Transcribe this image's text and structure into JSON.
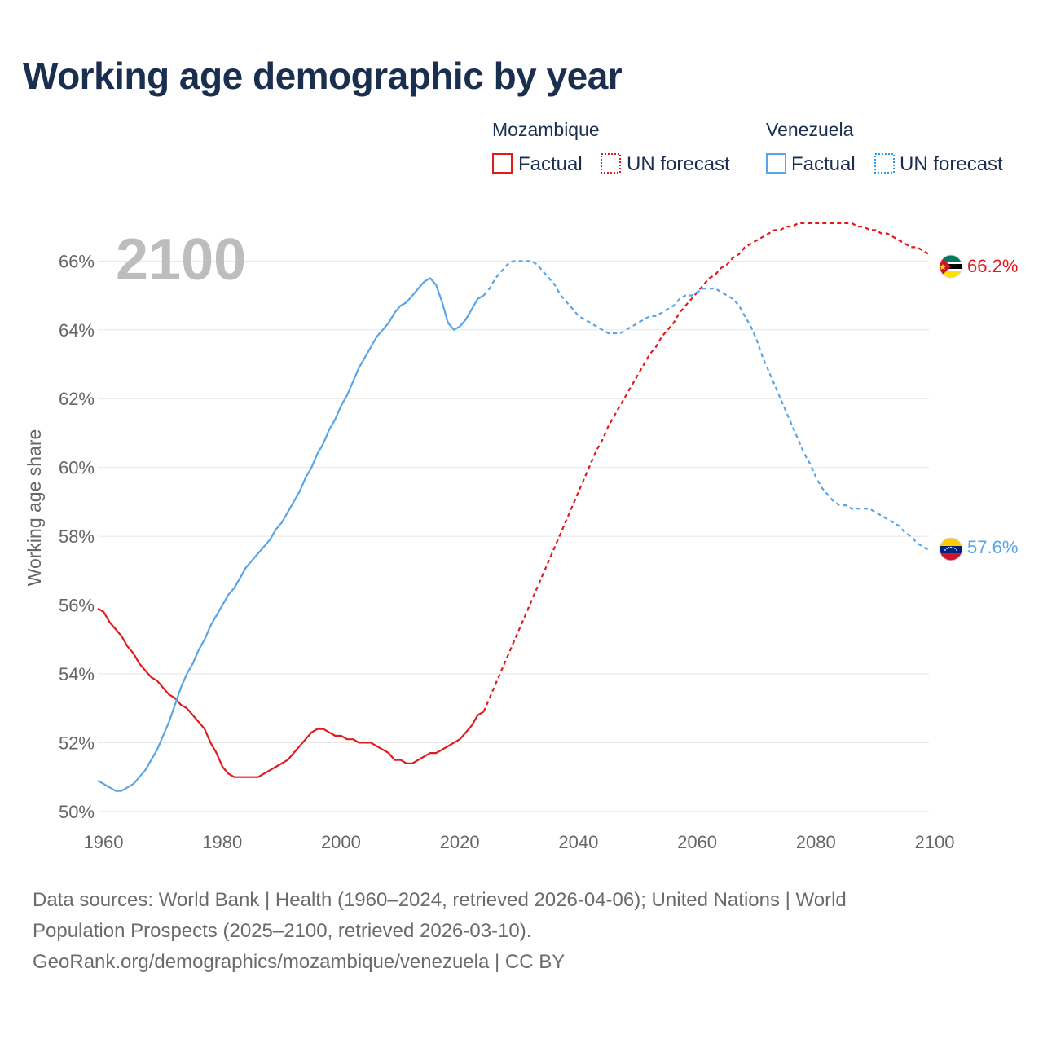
{
  "title": "Working age demographic by year",
  "footer": {
    "line1": "Data sources: World Bank | Health (1960–2024, retrieved 2026-04-06); United Nations | World",
    "line2": "Population Prospects (2025–2100, retrieved 2026-03-10).",
    "line3": "GeoRank.org/demographics/mozambique/venezuela | CC BY"
  },
  "colors": {
    "mozambique": "#e31a1c",
    "venezuela": "#5aa5e6",
    "forecast_box_vz": "#2a9df4"
  },
  "chart_data": {
    "type": "line",
    "title": "Working age demographic by year",
    "xlabel": "",
    "ylabel": "Working age share",
    "xlim": [
      1960,
      2100
    ],
    "ylim": [
      49.5,
      67.5
    ],
    "xticks": [
      1960,
      1980,
      2000,
      2020,
      2040,
      2060,
      2080,
      2100
    ],
    "yticks": [
      50,
      52,
      54,
      56,
      58,
      60,
      62,
      64,
      66
    ],
    "ytick_suffix": "%",
    "year_label": "2100",
    "forecast_start": 2024,
    "legend": {
      "groups": [
        {
          "country": "Mozambique",
          "factual": "Factual",
          "forecast": "UN forecast"
        },
        {
          "country": "Venezuela",
          "factual": "Factual",
          "forecast": "UN forecast"
        }
      ]
    },
    "series": [
      {
        "name": "Mozambique",
        "end_label": "66.2%",
        "flag": "mozambique-flag",
        "points": [
          [
            1960,
            55.9
          ],
          [
            1961,
            55.8
          ],
          [
            1962,
            55.5
          ],
          [
            1963,
            55.3
          ],
          [
            1964,
            55.1
          ],
          [
            1965,
            54.8
          ],
          [
            1966,
            54.6
          ],
          [
            1967,
            54.3
          ],
          [
            1968,
            54.1
          ],
          [
            1969,
            53.9
          ],
          [
            1970,
            53.8
          ],
          [
            1971,
            53.6
          ],
          [
            1972,
            53.4
          ],
          [
            1973,
            53.3
          ],
          [
            1974,
            53.1
          ],
          [
            1975,
            53.0
          ],
          [
            1976,
            52.8
          ],
          [
            1977,
            52.6
          ],
          [
            1978,
            52.4
          ],
          [
            1979,
            52.0
          ],
          [
            1980,
            51.7
          ],
          [
            1981,
            51.3
          ],
          [
            1982,
            51.1
          ],
          [
            1983,
            51.0
          ],
          [
            1984,
            51.0
          ],
          [
            1985,
            51.0
          ],
          [
            1986,
            51.0
          ],
          [
            1987,
            51.0
          ],
          [
            1988,
            51.1
          ],
          [
            1989,
            51.2
          ],
          [
            1990,
            51.3
          ],
          [
            1991,
            51.4
          ],
          [
            1992,
            51.5
          ],
          [
            1993,
            51.7
          ],
          [
            1994,
            51.9
          ],
          [
            1995,
            52.1
          ],
          [
            1996,
            52.3
          ],
          [
            1997,
            52.4
          ],
          [
            1998,
            52.4
          ],
          [
            1999,
            52.3
          ],
          [
            2000,
            52.2
          ],
          [
            2001,
            52.2
          ],
          [
            2002,
            52.1
          ],
          [
            2003,
            52.1
          ],
          [
            2004,
            52.0
          ],
          [
            2005,
            52.0
          ],
          [
            2006,
            52.0
          ],
          [
            2007,
            51.9
          ],
          [
            2008,
            51.8
          ],
          [
            2009,
            51.7
          ],
          [
            2010,
            51.5
          ],
          [
            2011,
            51.5
          ],
          [
            2012,
            51.4
          ],
          [
            2013,
            51.4
          ],
          [
            2014,
            51.5
          ],
          [
            2015,
            51.6
          ],
          [
            2016,
            51.7
          ],
          [
            2017,
            51.7
          ],
          [
            2018,
            51.8
          ],
          [
            2019,
            51.9
          ],
          [
            2020,
            52.0
          ],
          [
            2021,
            52.1
          ],
          [
            2022,
            52.3
          ],
          [
            2023,
            52.5
          ],
          [
            2024,
            52.8
          ],
          [
            2025,
            52.9
          ],
          [
            2026,
            53.3
          ],
          [
            2027,
            53.7
          ],
          [
            2028,
            54.1
          ],
          [
            2029,
            54.5
          ],
          [
            2030,
            54.9
          ],
          [
            2031,
            55.3
          ],
          [
            2032,
            55.7
          ],
          [
            2033,
            56.1
          ],
          [
            2034,
            56.5
          ],
          [
            2035,
            56.9
          ],
          [
            2036,
            57.3
          ],
          [
            2037,
            57.7
          ],
          [
            2038,
            58.1
          ],
          [
            2039,
            58.5
          ],
          [
            2040,
            58.9
          ],
          [
            2041,
            59.3
          ],
          [
            2042,
            59.7
          ],
          [
            2043,
            60.1
          ],
          [
            2044,
            60.5
          ],
          [
            2045,
            60.8
          ],
          [
            2046,
            61.2
          ],
          [
            2047,
            61.5
          ],
          [
            2048,
            61.8
          ],
          [
            2049,
            62.1
          ],
          [
            2050,
            62.4
          ],
          [
            2051,
            62.7
          ],
          [
            2052,
            63.0
          ],
          [
            2053,
            63.3
          ],
          [
            2054,
            63.5
          ],
          [
            2055,
            63.8
          ],
          [
            2056,
            64.0
          ],
          [
            2057,
            64.2
          ],
          [
            2058,
            64.5
          ],
          [
            2059,
            64.7
          ],
          [
            2060,
            64.9
          ],
          [
            2061,
            65.1
          ],
          [
            2062,
            65.3
          ],
          [
            2063,
            65.5
          ],
          [
            2064,
            65.6
          ],
          [
            2065,
            65.8
          ],
          [
            2066,
            65.9
          ],
          [
            2067,
            66.1
          ],
          [
            2068,
            66.2
          ],
          [
            2069,
            66.4
          ],
          [
            2070,
            66.5
          ],
          [
            2071,
            66.6
          ],
          [
            2072,
            66.7
          ],
          [
            2073,
            66.8
          ],
          [
            2074,
            66.9
          ],
          [
            2075,
            66.9
          ],
          [
            2076,
            67.0
          ],
          [
            2077,
            67.0
          ],
          [
            2078,
            67.1
          ],
          [
            2079,
            67.1
          ],
          [
            2080,
            67.1
          ],
          [
            2081,
            67.1
          ],
          [
            2082,
            67.1
          ],
          [
            2083,
            67.1
          ],
          [
            2084,
            67.1
          ],
          [
            2085,
            67.1
          ],
          [
            2086,
            67.1
          ],
          [
            2087,
            67.1
          ],
          [
            2088,
            67.0
          ],
          [
            2089,
            67.0
          ],
          [
            2090,
            66.9
          ],
          [
            2091,
            66.9
          ],
          [
            2092,
            66.8
          ],
          [
            2093,
            66.8
          ],
          [
            2094,
            66.7
          ],
          [
            2095,
            66.6
          ],
          [
            2096,
            66.5
          ],
          [
            2097,
            66.4
          ],
          [
            2098,
            66.4
          ],
          [
            2099,
            66.3
          ],
          [
            2100,
            66.2
          ]
        ]
      },
      {
        "name": "Venezuela",
        "end_label": "57.6%",
        "flag": "venezuela-flag",
        "points": [
          [
            1960,
            50.9
          ],
          [
            1961,
            50.8
          ],
          [
            1962,
            50.7
          ],
          [
            1963,
            50.6
          ],
          [
            1964,
            50.6
          ],
          [
            1965,
            50.7
          ],
          [
            1966,
            50.8
          ],
          [
            1967,
            51.0
          ],
          [
            1968,
            51.2
          ],
          [
            1969,
            51.5
          ],
          [
            1970,
            51.8
          ],
          [
            1971,
            52.2
          ],
          [
            1972,
            52.6
          ],
          [
            1973,
            53.1
          ],
          [
            1974,
            53.6
          ],
          [
            1975,
            54.0
          ],
          [
            1976,
            54.3
          ],
          [
            1977,
            54.7
          ],
          [
            1978,
            55.0
          ],
          [
            1979,
            55.4
          ],
          [
            1980,
            55.7
          ],
          [
            1981,
            56.0
          ],
          [
            1982,
            56.3
          ],
          [
            1983,
            56.5
          ],
          [
            1984,
            56.8
          ],
          [
            1985,
            57.1
          ],
          [
            1986,
            57.3
          ],
          [
            1987,
            57.5
          ],
          [
            1988,
            57.7
          ],
          [
            1989,
            57.9
          ],
          [
            1990,
            58.2
          ],
          [
            1991,
            58.4
          ],
          [
            1992,
            58.7
          ],
          [
            1993,
            59.0
          ],
          [
            1994,
            59.3
          ],
          [
            1995,
            59.7
          ],
          [
            1996,
            60.0
          ],
          [
            1997,
            60.4
          ],
          [
            1998,
            60.7
          ],
          [
            1999,
            61.1
          ],
          [
            2000,
            61.4
          ],
          [
            2001,
            61.8
          ],
          [
            2002,
            62.1
          ],
          [
            2003,
            62.5
          ],
          [
            2004,
            62.9
          ],
          [
            2005,
            63.2
          ],
          [
            2006,
            63.5
          ],
          [
            2007,
            63.8
          ],
          [
            2008,
            64.0
          ],
          [
            2009,
            64.2
          ],
          [
            2010,
            64.5
          ],
          [
            2011,
            64.7
          ],
          [
            2012,
            64.8
          ],
          [
            2013,
            65.0
          ],
          [
            2014,
            65.2
          ],
          [
            2015,
            65.4
          ],
          [
            2016,
            65.5
          ],
          [
            2017,
            65.3
          ],
          [
            2018,
            64.8
          ],
          [
            2019,
            64.2
          ],
          [
            2020,
            64.0
          ],
          [
            2021,
            64.1
          ],
          [
            2022,
            64.3
          ],
          [
            2023,
            64.6
          ],
          [
            2024,
            64.9
          ],
          [
            2025,
            65.0
          ],
          [
            2026,
            65.2
          ],
          [
            2027,
            65.5
          ],
          [
            2028,
            65.7
          ],
          [
            2029,
            65.9
          ],
          [
            2030,
            66.0
          ],
          [
            2031,
            66.0
          ],
          [
            2032,
            66.0
          ],
          [
            2033,
            66.0
          ],
          [
            2034,
            65.9
          ],
          [
            2035,
            65.7
          ],
          [
            2036,
            65.5
          ],
          [
            2037,
            65.3
          ],
          [
            2038,
            65.0
          ],
          [
            2039,
            64.8
          ],
          [
            2040,
            64.6
          ],
          [
            2041,
            64.4
          ],
          [
            2042,
            64.3
          ],
          [
            2043,
            64.2
          ],
          [
            2044,
            64.1
          ],
          [
            2045,
            64.0
          ],
          [
            2046,
            63.9
          ],
          [
            2047,
            63.9
          ],
          [
            2048,
            63.9
          ],
          [
            2049,
            64.0
          ],
          [
            2050,
            64.1
          ],
          [
            2051,
            64.2
          ],
          [
            2052,
            64.3
          ],
          [
            2053,
            64.4
          ],
          [
            2054,
            64.4
          ],
          [
            2055,
            64.5
          ],
          [
            2056,
            64.6
          ],
          [
            2057,
            64.7
          ],
          [
            2058,
            64.9
          ],
          [
            2059,
            65.0
          ],
          [
            2060,
            65.0
          ],
          [
            2061,
            65.1
          ],
          [
            2062,
            65.2
          ],
          [
            2063,
            65.2
          ],
          [
            2064,
            65.2
          ],
          [
            2065,
            65.1
          ],
          [
            2066,
            65.0
          ],
          [
            2067,
            64.9
          ],
          [
            2068,
            64.7
          ],
          [
            2069,
            64.4
          ],
          [
            2070,
            64.1
          ],
          [
            2071,
            63.7
          ],
          [
            2072,
            63.2
          ],
          [
            2073,
            62.8
          ],
          [
            2074,
            62.4
          ],
          [
            2075,
            62.0
          ],
          [
            2076,
            61.6
          ],
          [
            2077,
            61.2
          ],
          [
            2078,
            60.8
          ],
          [
            2079,
            60.4
          ],
          [
            2080,
            60.1
          ],
          [
            2081,
            59.7
          ],
          [
            2082,
            59.4
          ],
          [
            2083,
            59.2
          ],
          [
            2084,
            59.0
          ],
          [
            2085,
            58.9
          ],
          [
            2086,
            58.9
          ],
          [
            2087,
            58.8
          ],
          [
            2088,
            58.8
          ],
          [
            2089,
            58.8
          ],
          [
            2090,
            58.8
          ],
          [
            2091,
            58.7
          ],
          [
            2092,
            58.6
          ],
          [
            2093,
            58.5
          ],
          [
            2094,
            58.4
          ],
          [
            2095,
            58.3
          ],
          [
            2096,
            58.1
          ],
          [
            2097,
            58.0
          ],
          [
            2098,
            57.8
          ],
          [
            2099,
            57.7
          ],
          [
            2100,
            57.6
          ]
        ]
      }
    ]
  }
}
